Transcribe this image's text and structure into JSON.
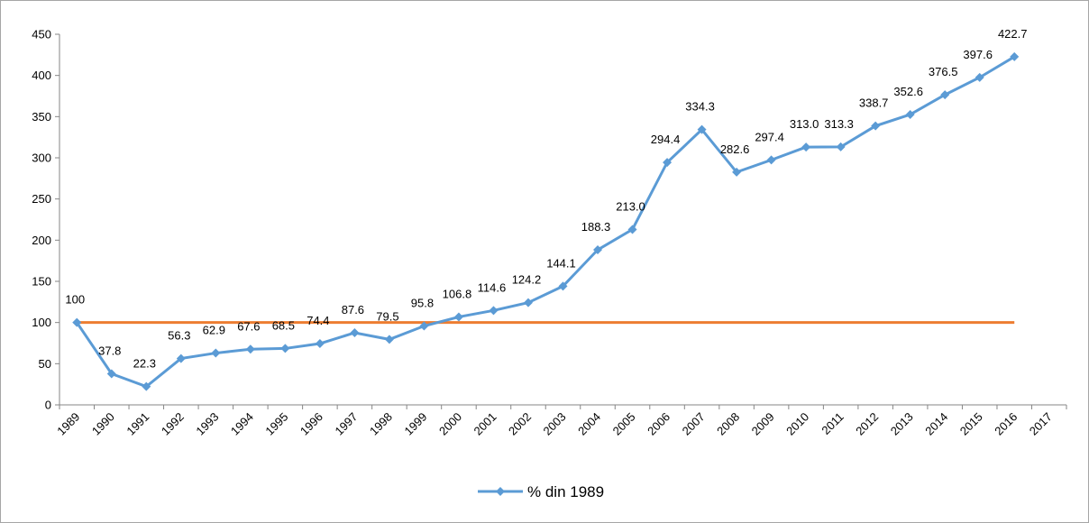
{
  "chart_data": {
    "type": "line",
    "categories": [
      "1989",
      "1990",
      "1991",
      "1992",
      "1993",
      "1994",
      "1995",
      "1996",
      "1997",
      "1998",
      "1999",
      "2000",
      "2001",
      "2002",
      "2003",
      "2004",
      "2005",
      "2006",
      "2007",
      "2008",
      "2009",
      "2010",
      "2011",
      "2012",
      "2013",
      "2014",
      "2015",
      "2016",
      "2017"
    ],
    "series": [
      {
        "name": "% din 1989",
        "color": "#5b9bd5",
        "values": [
          100,
          37.8,
          22.3,
          56.3,
          62.9,
          67.6,
          68.5,
          74.4,
          87.6,
          79.5,
          95.8,
          106.8,
          114.6,
          124.2,
          144.1,
          188.3,
          213,
          294.4,
          334.3,
          282.6,
          297.4,
          313,
          313.3,
          338.7,
          352.6,
          376.5,
          397.6,
          422.7,
          null
        ],
        "value_labels": [
          "100",
          "37.8",
          "22.3",
          "56.3",
          "62.9",
          "67.6",
          "68.5",
          "74.4",
          "87.6",
          "79.5",
          "95.8",
          "106.8",
          "114.6",
          "124.2",
          "144.1",
          "188.3",
          "213.0",
          "294.4",
          "334.3",
          "282.6",
          "297.4",
          "313.0",
          "313.3",
          "338.7",
          "352.6",
          "376.5",
          "397.6",
          "422.7",
          null
        ]
      },
      {
        "color": "#ed7d31",
        "values": [
          100,
          100,
          100,
          100,
          100,
          100,
          100,
          100,
          100,
          100,
          100,
          100,
          100,
          100,
          100,
          100,
          100,
          100,
          100,
          100,
          100,
          100,
          100,
          100,
          100,
          100,
          100,
          100,
          null
        ]
      }
    ],
    "ylim": [
      0,
      450
    ],
    "yticks": [
      0,
      50,
      100,
      150,
      200,
      250,
      300,
      350,
      400,
      450
    ],
    "grid": false,
    "legend": "bottom"
  }
}
